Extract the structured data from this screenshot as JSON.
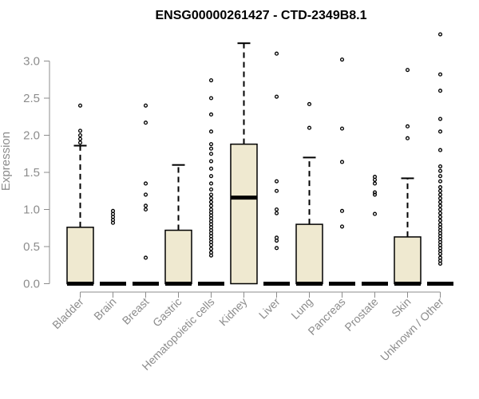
{
  "chart_data": {
    "type": "box",
    "title": "ENSG00000261427 - CTD-2349B8.1",
    "ylabel": "Expression",
    "ylim": [
      0,
      3.4
    ],
    "yticks": [
      "0.0",
      "0.5",
      "1.0",
      "1.5",
      "2.0",
      "2.5",
      "3.0"
    ],
    "grid": false,
    "colors": {
      "box_fill": "#efe9d0",
      "stroke": "#000000",
      "axis": "#8c8c8c"
    },
    "categories": [
      "Bladder",
      "Brain",
      "Breast",
      "Gastric",
      "Hematopoietic cells",
      "Kidney",
      "Liver",
      "Lung",
      "Pancreas",
      "Prostate",
      "Skin",
      "Unknown / Other"
    ],
    "boxes": [
      {
        "category": "Bladder",
        "q1": 0.0,
        "median": 0.0,
        "q3": 0.76,
        "whisker_low": 0.0,
        "whisker_high": 1.86,
        "outliers": [
          1.9,
          1.95,
          2.0,
          2.06,
          2.4
        ]
      },
      {
        "category": "Brain",
        "q1": 0.0,
        "median": 0.0,
        "q3": 0.0,
        "whisker_low": 0.0,
        "whisker_high": 0.0,
        "outliers": [
          0.82,
          0.86,
          0.9,
          0.94,
          0.98
        ]
      },
      {
        "category": "Breast",
        "q1": 0.0,
        "median": 0.0,
        "q3": 0.0,
        "whisker_low": 0.0,
        "whisker_high": 0.0,
        "outliers": [
          0.35,
          1.0,
          1.05,
          1.2,
          1.35,
          2.17,
          2.4
        ]
      },
      {
        "category": "Gastric",
        "q1": 0.0,
        "median": 0.0,
        "q3": 0.72,
        "whisker_low": 0.0,
        "whisker_high": 1.6,
        "outliers": []
      },
      {
        "category": "Hematopoietic cells",
        "q1": 0.0,
        "median": 0.0,
        "q3": 0.0,
        "whisker_low": 0.0,
        "whisker_high": 0.0,
        "outliers": [
          0.38,
          0.42,
          0.47,
          0.52,
          0.56,
          0.6,
          0.64,
          0.68,
          0.72,
          0.76,
          0.8,
          0.84,
          0.88,
          0.92,
          0.96,
          1.0,
          1.05,
          1.1,
          1.15,
          1.2,
          1.27,
          1.35,
          1.45,
          1.55,
          1.65,
          1.75,
          1.82,
          1.88,
          2.05,
          2.28,
          2.5,
          2.74
        ]
      },
      {
        "category": "Kidney",
        "q1": 0.0,
        "median": 1.16,
        "q3": 1.88,
        "whisker_low": 0.0,
        "whisker_high": 3.24,
        "outliers": []
      },
      {
        "category": "Liver",
        "q1": 0.0,
        "median": 0.0,
        "q3": 0.0,
        "whisker_low": 0.0,
        "whisker_high": 0.0,
        "outliers": [
          0.48,
          0.58,
          0.62,
          0.95,
          1.0,
          1.25,
          1.38,
          2.52,
          3.1
        ]
      },
      {
        "category": "Lung",
        "q1": 0.0,
        "median": 0.0,
        "q3": 0.8,
        "whisker_low": 0.0,
        "whisker_high": 1.7,
        "outliers": [
          2.1,
          2.42
        ]
      },
      {
        "category": "Pancreas",
        "q1": 0.0,
        "median": 0.0,
        "q3": 0.0,
        "whisker_low": 0.0,
        "whisker_high": 0.0,
        "outliers": [
          0.77,
          0.98,
          1.64,
          2.09,
          3.02
        ]
      },
      {
        "category": "Prostate",
        "q1": 0.0,
        "median": 0.0,
        "q3": 0.0,
        "whisker_low": 0.0,
        "whisker_high": 0.0,
        "outliers": [
          0.94,
          1.2,
          1.23,
          1.35,
          1.4,
          1.44
        ]
      },
      {
        "category": "Skin",
        "q1": 0.0,
        "median": 0.0,
        "q3": 0.63,
        "whisker_low": 0.0,
        "whisker_high": 1.42,
        "outliers": [
          1.96,
          2.12,
          2.88
        ]
      },
      {
        "category": "Unknown / Other",
        "q1": 0.0,
        "median": 0.0,
        "q3": 0.0,
        "whisker_low": 0.0,
        "whisker_high": 0.0,
        "outliers": [
          0.27,
          0.31,
          0.35,
          0.4,
          0.44,
          0.48,
          0.52,
          0.56,
          0.6,
          0.64,
          0.68,
          0.72,
          0.76,
          0.8,
          0.85,
          0.9,
          0.95,
          1.0,
          1.05,
          1.1,
          1.15,
          1.2,
          1.25,
          1.3,
          1.38,
          1.45,
          1.52,
          1.58,
          1.8,
          2.05,
          2.22,
          2.6,
          2.82,
          3.36
        ]
      }
    ]
  }
}
